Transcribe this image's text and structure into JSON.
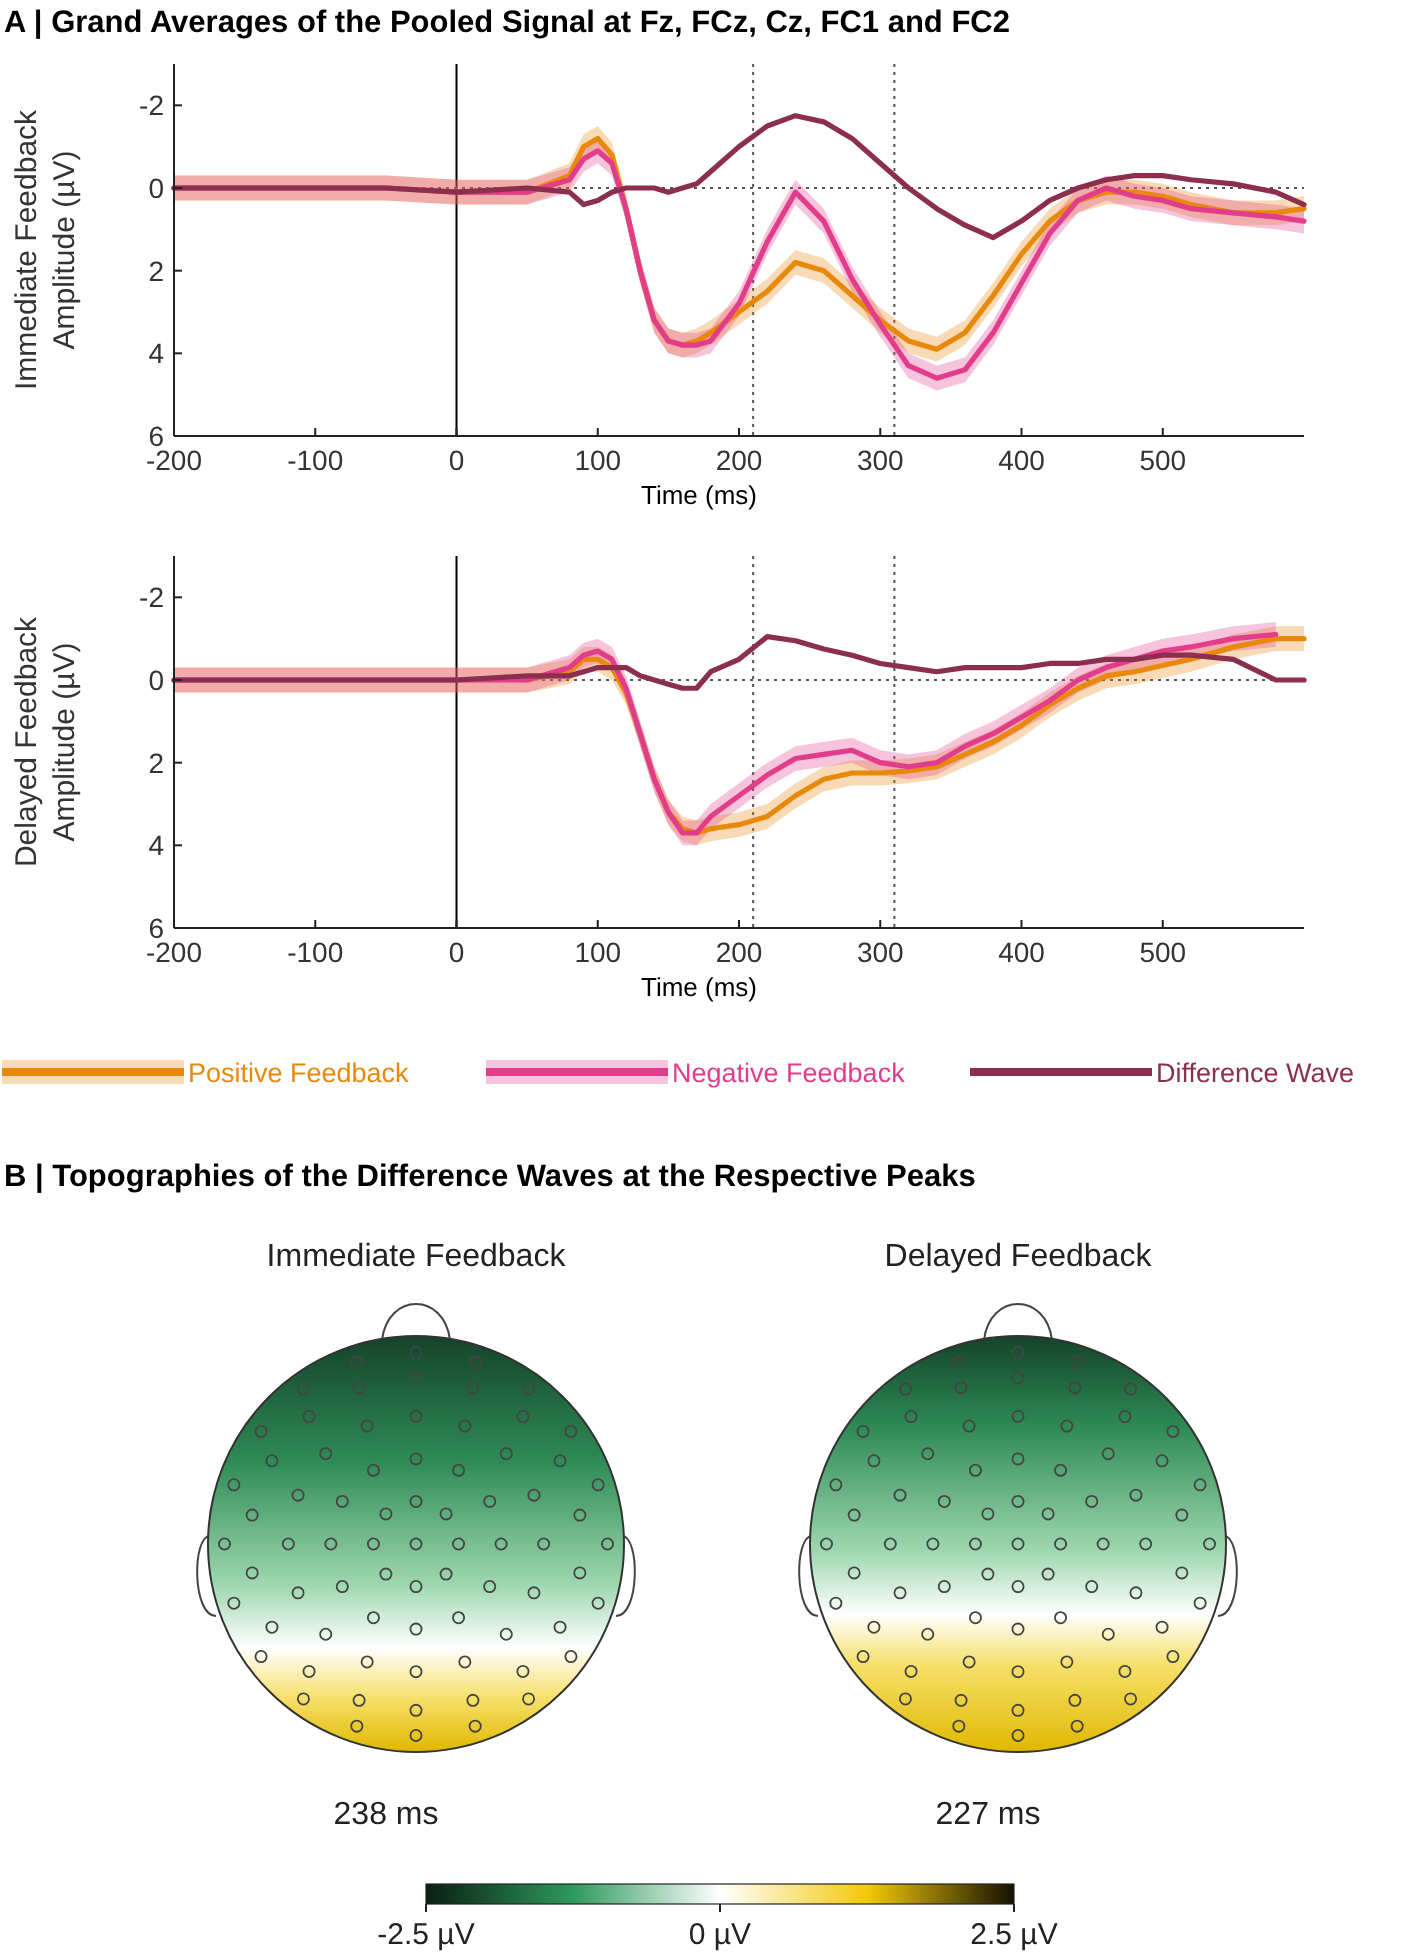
{
  "chart_data": [
    {
      "type": "line",
      "title": "A | Grand Averages of the Pooled Signal at Fz, FCz, Cz, FC1 and FC2",
      "xlabel": "Time (ms)",
      "ylabel": "Immediate Feedback Amplitude (µV)",
      "x": [
        -200,
        -150,
        -100,
        -50,
        0,
        50,
        80,
        90,
        100,
        110,
        120,
        130,
        140,
        150,
        160,
        170,
        180,
        200,
        220,
        240,
        260,
        280,
        300,
        320,
        340,
        360,
        380,
        400,
        420,
        440,
        460,
        480,
        500,
        520,
        550,
        580,
        600
      ],
      "series": [
        {
          "color": "#e8890c",
          "values": [
            null,
            null,
            null,
            null,
            0.1,
            0.1,
            -0.3,
            -1.0,
            -1.2,
            -0.8,
            0.5,
            2.0,
            3.2,
            3.7,
            3.8,
            3.7,
            3.5,
            3.0,
            2.5,
            1.8,
            2.0,
            2.6,
            3.2,
            3.7,
            3.9,
            3.5,
            2.6,
            1.6,
            0.8,
            0.3,
            0.1,
            0.1,
            0.2,
            0.4,
            0.6,
            0.6,
            0.5
          ],
          "lower": [
            -0.3,
            -0.3,
            -0.3,
            -0.3,
            -0.2,
            -0.2,
            -0.6,
            -1.3,
            -1.5,
            -1.1,
            0.2,
            1.7,
            2.9,
            3.4,
            3.5,
            3.4,
            3.2,
            2.7,
            2.2,
            1.5,
            1.7,
            2.3,
            2.9,
            3.4,
            3.6,
            3.2,
            2.3,
            1.3,
            0.5,
            0.0,
            -0.2,
            -0.2,
            -0.1,
            0.1,
            0.3,
            0.3,
            0.2
          ],
          "upper": [
            0.3,
            0.3,
            0.3,
            0.3,
            0.4,
            0.4,
            0,
            -0.7,
            -0.9,
            -0.5,
            0.8,
            2.3,
            3.5,
            4.0,
            4.1,
            4.0,
            3.8,
            3.3,
            2.8,
            2.1,
            2.3,
            2.9,
            3.5,
            4.0,
            4.2,
            3.8,
            2.9,
            1.9,
            1.1,
            0.6,
            0.4,
            0.4,
            0.5,
            0.7,
            0.9,
            0.9,
            0.8
          ]
        },
        {
          "color": "#e23d8b",
          "values": [
            0,
            0,
            0,
            0,
            0.1,
            0.1,
            -0.2,
            -0.7,
            -0.9,
            -0.6,
            0.5,
            2.0,
            3.2,
            3.7,
            3.8,
            3.8,
            3.7,
            2.8,
            1.3,
            0.1,
            0.8,
            2.2,
            3.3,
            4.3,
            4.6,
            4.4,
            3.5,
            2.3,
            1.1,
            0.3,
            0.0,
            0.2,
            0.3,
            0.5,
            0.6,
            0.7,
            0.8
          ],
          "lower": [
            -0.3,
            -0.3,
            -0.3,
            -0.3,
            -0.2,
            -0.2,
            -0.5,
            -1.0,
            -1.2,
            -0.9,
            0.2,
            1.7,
            2.9,
            3.4,
            3.5,
            3.5,
            3.4,
            2.5,
            1.0,
            -0.2,
            0.5,
            1.9,
            3.0,
            4.0,
            4.3,
            4.1,
            3.2,
            2.0,
            0.8,
            0.0,
            -0.3,
            -0.1,
            0.0,
            0.2,
            0.3,
            0.4,
            0.5
          ],
          "upper": [
            0.3,
            0.3,
            0.3,
            0.3,
            0.4,
            0.4,
            0.1,
            -0.4,
            -0.6,
            -0.3,
            0.8,
            2.3,
            3.5,
            4.0,
            4.1,
            4.1,
            4.0,
            3.1,
            1.6,
            0.4,
            1.1,
            2.5,
            3.6,
            4.6,
            4.9,
            4.7,
            3.8,
            2.6,
            1.4,
            0.6,
            0.3,
            0.5,
            0.6,
            0.8,
            0.9,
            1.0,
            1.1
          ]
        },
        {
          "color": "#8c2f4f",
          "values": [
            0,
            0,
            0,
            0,
            0.1,
            0,
            0.1,
            0.4,
            0.3,
            0.1,
            0.0,
            0.0,
            0.0,
            0.1,
            0.0,
            -0.1,
            -0.4,
            -1.0,
            -1.5,
            -1.75,
            -1.6,
            -1.2,
            -0.6,
            0.0,
            0.5,
            0.9,
            1.2,
            0.8,
            0.3,
            0.0,
            -0.2,
            -0.3,
            -0.3,
            -0.2,
            -0.1,
            0.1,
            0.4
          ]
        }
      ],
      "xlim": [
        -200,
        600
      ],
      "xticks": [
        -200,
        -100,
        0,
        100,
        200,
        300,
        400,
        500
      ],
      "ylim": [
        6,
        -3
      ],
      "yticks": [
        -2,
        0,
        2,
        4,
        6
      ],
      "ref_lines": [
        {
          "axis": "x",
          "value": 0,
          "line_style": "solid",
          "color": "#000000"
        },
        {
          "axis": "x",
          "value": 210,
          "line_style": "dotted",
          "color": "#555555"
        },
        {
          "axis": "x",
          "value": 310,
          "line_style": "dotted",
          "color": "#555555"
        },
        {
          "axis": "y",
          "value": 0,
          "line_style": "dotted",
          "color": "#555555"
        }
      ]
    },
    {
      "type": "line",
      "xlabel": "Time (ms)",
      "ylabel": "Delayed Feedback Amplitude (µV)",
      "legend": "bottom",
      "x": [
        -200,
        -150,
        -100,
        -50,
        0,
        50,
        80,
        90,
        100,
        110,
        120,
        130,
        140,
        150,
        160,
        170,
        180,
        200,
        220,
        240,
        260,
        280,
        300,
        320,
        340,
        360,
        380,
        400,
        420,
        440,
        460,
        480,
        500,
        520,
        550,
        580,
        600
      ],
      "series": [
        {
          "name": "Positive Feedback",
          "color": "#e8890c",
          "values": [
            null,
            null,
            null,
            null,
            null,
            0,
            -0.2,
            -0.5,
            -0.5,
            -0.3,
            0.3,
            1.3,
            2.4,
            3.2,
            3.6,
            3.7,
            3.6,
            3.5,
            3.3,
            2.8,
            2.4,
            2.25,
            2.25,
            2.2,
            2.1,
            1.8,
            1.5,
            1.1,
            0.6,
            0.2,
            -0.1,
            -0.2,
            -0.35,
            -0.5,
            -0.8,
            -1.0,
            -1.0
          ],
          "lower": [
            -0.3,
            -0.3,
            -0.3,
            -0.3,
            -0.3,
            -0.3,
            -0.5,
            -0.8,
            -0.8,
            -0.6,
            0.0,
            1.0,
            2.1,
            2.9,
            3.3,
            3.4,
            3.3,
            3.2,
            3.0,
            2.5,
            2.1,
            1.95,
            1.95,
            1.9,
            1.8,
            1.5,
            1.2,
            0.8,
            0.3,
            -0.1,
            -0.4,
            -0.5,
            -0.65,
            -0.8,
            -1.1,
            -1.3,
            -1.3
          ],
          "upper": [
            0.3,
            0.3,
            0.3,
            0.3,
            0.3,
            0.3,
            0.1,
            -0.2,
            -0.2,
            0.0,
            0.6,
            1.6,
            2.7,
            3.5,
            3.9,
            4.0,
            3.9,
            3.8,
            3.6,
            3.1,
            2.7,
            2.55,
            2.55,
            2.5,
            2.4,
            2.1,
            1.8,
            1.4,
            0.9,
            0.5,
            0.2,
            0.1,
            -0.05,
            -0.2,
            -0.5,
            -0.7,
            -0.7
          ]
        },
        {
          "name": "Negative Feedback",
          "color": "#e23d8b",
          "values": [
            0,
            0,
            0,
            0,
            0,
            0,
            -0.3,
            -0.6,
            -0.7,
            -0.5,
            0.2,
            1.3,
            2.4,
            3.2,
            3.7,
            3.7,
            3.3,
            2.8,
            2.3,
            1.9,
            1.8,
            1.7,
            2.0,
            2.1,
            2.0,
            1.6,
            1.3,
            0.9,
            0.5,
            0.0,
            -0.3,
            -0.5,
            -0.7,
            -0.8,
            -1.0,
            -1.1,
            null
          ],
          "lower": [
            -0.3,
            -0.3,
            -0.3,
            -0.3,
            -0.3,
            -0.3,
            -0.6,
            -0.9,
            -1.0,
            -0.8,
            -0.1,
            1.0,
            2.1,
            2.9,
            3.4,
            3.4,
            3.0,
            2.5,
            2.0,
            1.6,
            1.5,
            1.4,
            1.7,
            1.8,
            1.7,
            1.3,
            1.0,
            0.6,
            0.2,
            -0.3,
            -0.6,
            -0.8,
            -1.0,
            -1.1,
            -1.3,
            -1.4,
            null
          ],
          "upper": [
            0.3,
            0.3,
            0.3,
            0.3,
            0.3,
            0.3,
            0.0,
            -0.3,
            -0.4,
            -0.2,
            0.5,
            1.6,
            2.7,
            3.5,
            4.0,
            4.0,
            3.6,
            3.1,
            2.6,
            2.2,
            2.1,
            2.0,
            2.3,
            2.4,
            2.3,
            1.9,
            1.6,
            1.2,
            0.8,
            0.3,
            0.0,
            -0.2,
            -0.4,
            -0.5,
            -0.7,
            -0.8,
            null
          ]
        },
        {
          "name": "Difference Wave",
          "color": "#8c2f4f",
          "values": [
            0,
            0,
            0,
            0,
            0,
            -0.1,
            -0.1,
            -0.2,
            -0.3,
            -0.3,
            -0.3,
            -0.1,
            0.0,
            0.1,
            0.2,
            0.2,
            -0.2,
            -0.5,
            -1.05,
            -0.95,
            -0.75,
            -0.6,
            -0.4,
            -0.3,
            -0.2,
            -0.3,
            -0.3,
            -0.3,
            -0.4,
            -0.4,
            -0.5,
            -0.5,
            -0.6,
            -0.6,
            -0.5,
            0.0,
            0.0
          ]
        }
      ],
      "xlim": [
        -200,
        600
      ],
      "xticks": [
        -200,
        -100,
        0,
        100,
        200,
        300,
        400,
        500
      ],
      "ylim": [
        6,
        -3
      ],
      "yticks": [
        -2,
        0,
        2,
        4,
        6
      ],
      "ref_lines": [
        {
          "axis": "x",
          "value": 0,
          "line_style": "solid",
          "color": "#000000"
        },
        {
          "axis": "x",
          "value": 210,
          "line_style": "dotted",
          "color": "#555555"
        },
        {
          "axis": "x",
          "value": 310,
          "line_style": "dotted",
          "color": "#555555"
        },
        {
          "axis": "y",
          "value": 0,
          "line_style": "dotted",
          "color": "#555555"
        }
      ]
    },
    {
      "type": "other",
      "title": "B | Topographies of the Difference Waves at the Respective Peaks",
      "annotations": [
        "Immediate Feedback",
        "238 ms",
        "Delayed Feedback",
        "227 ms",
        "-2.5 µV",
        "0 µV",
        "2.5 µV"
      ]
    }
  ]
}
